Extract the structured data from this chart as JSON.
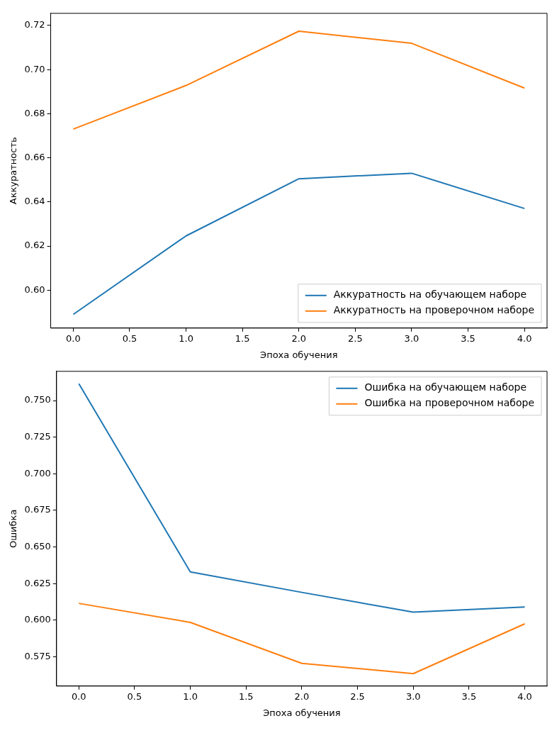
{
  "chart_data": [
    {
      "type": "line",
      "xlabel": "Эпоха обучения",
      "ylabel": "Аккуратность",
      "x": [
        0,
        1,
        2,
        3,
        4
      ],
      "series": [
        {
          "name": "Аккуратность на обучающем наборе",
          "color": "#1f77b4",
          "values": [
            0.589,
            0.6246,
            0.6505,
            0.653,
            0.637
          ]
        },
        {
          "name": "Аккуратность на проверочном наборе",
          "color": "#ff7f0e",
          "values": [
            0.673,
            0.6928,
            0.7174,
            0.7119,
            0.6916
          ]
        }
      ],
      "xlim": [
        -0.2,
        4.2
      ],
      "ylim": [
        0.5828,
        0.7255
      ],
      "xticks": [
        {
          "value": 0,
          "label": "0.0"
        },
        {
          "value": 0.5,
          "label": "0.5"
        },
        {
          "value": 1,
          "label": "1.0"
        },
        {
          "value": 1.5,
          "label": "1.5"
        },
        {
          "value": 2,
          "label": "2.0"
        },
        {
          "value": 2.5,
          "label": "2.5"
        },
        {
          "value": 3,
          "label": "3.0"
        },
        {
          "value": 3.5,
          "label": "3.5"
        },
        {
          "value": 4,
          "label": "4.0"
        }
      ],
      "yticks": [
        {
          "value": 0.6,
          "label": "0.60"
        },
        {
          "value": 0.62,
          "label": "0.62"
        },
        {
          "value": 0.64,
          "label": "0.64"
        },
        {
          "value": 0.66,
          "label": "0.66"
        },
        {
          "value": 0.68,
          "label": "0.68"
        },
        {
          "value": 0.7,
          "label": "0.70"
        },
        {
          "value": 0.72,
          "label": "0.72"
        }
      ],
      "grid": false,
      "legend": "bottom right",
      "marker": "none",
      "line_style": "solid"
    },
    {
      "type": "line",
      "xlabel": "Эпоха обучения",
      "ylabel": "Ошибка",
      "x": [
        0,
        1,
        2,
        3,
        4
      ],
      "series": [
        {
          "name": "Ошибка на обучающем наборе",
          "color": "#1f77b4",
          "values": [
            0.7615,
            0.633,
            0.619,
            0.6055,
            0.609
          ]
        },
        {
          "name": "Ошибка на проверочном наборе",
          "color": "#ff7f0e",
          "values": [
            0.6115,
            0.5985,
            0.5705,
            0.5635,
            0.5975
          ]
        }
      ],
      "xlim": [
        -0.2,
        4.2
      ],
      "ylim": [
        0.555,
        0.77
      ],
      "xticks": [
        {
          "value": 0,
          "label": "0.0"
        },
        {
          "value": 0.5,
          "label": "0.5"
        },
        {
          "value": 1,
          "label": "1.0"
        },
        {
          "value": 1.5,
          "label": "1.5"
        },
        {
          "value": 2,
          "label": "2.0"
        },
        {
          "value": 2.5,
          "label": "2.5"
        },
        {
          "value": 3,
          "label": "3.0"
        },
        {
          "value": 3.5,
          "label": "3.5"
        },
        {
          "value": 4,
          "label": "4.0"
        }
      ],
      "yticks": [
        {
          "value": 0.575,
          "label": "0.575"
        },
        {
          "value": 0.6,
          "label": "0.600"
        },
        {
          "value": 0.625,
          "label": "0.625"
        },
        {
          "value": 0.65,
          "label": "0.650"
        },
        {
          "value": 0.675,
          "label": "0.675"
        },
        {
          "value": 0.7,
          "label": "0.700"
        },
        {
          "value": 0.725,
          "label": "0.725"
        },
        {
          "value": 0.75,
          "label": "0.750"
        }
      ],
      "grid": false,
      "legend": "top right",
      "marker": "none",
      "line_style": "solid"
    }
  ]
}
